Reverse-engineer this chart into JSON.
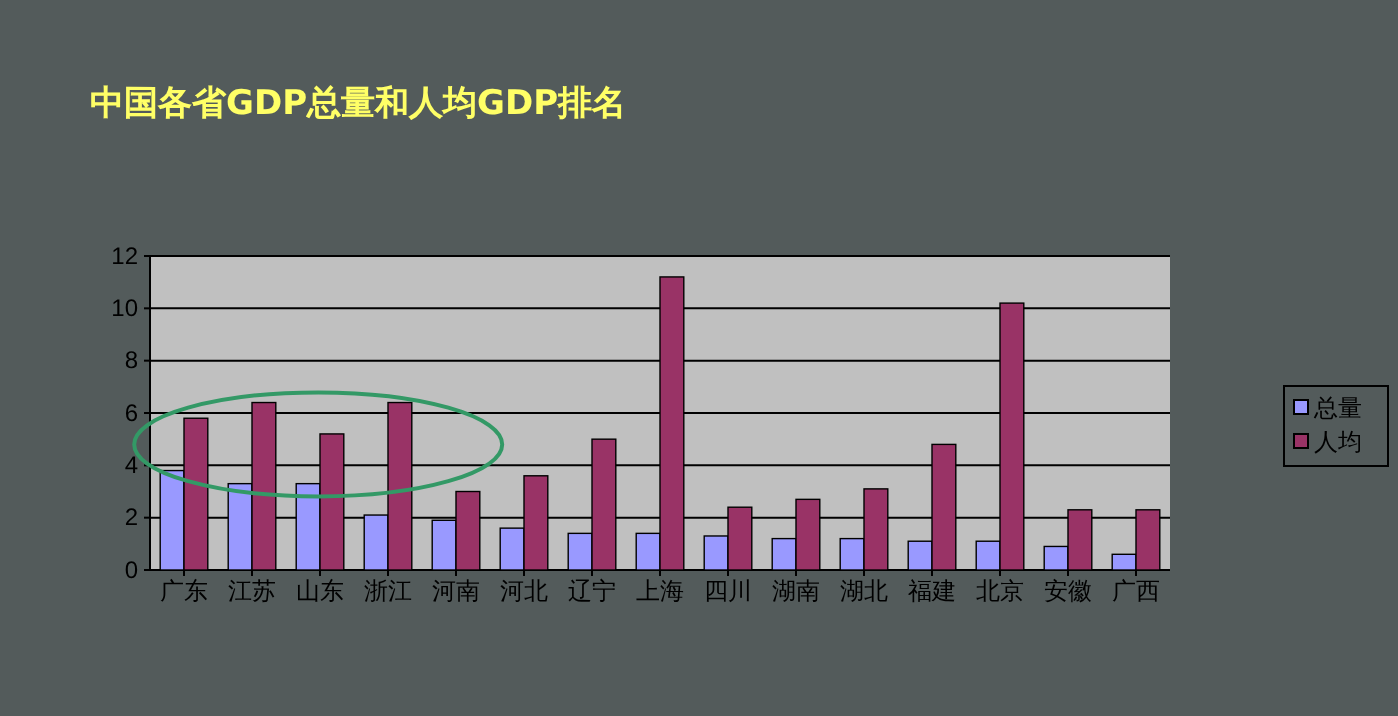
{
  "chart_data": {
    "type": "bar",
    "title": "中国各省GDP总量和人均GDP排名",
    "categories": [
      "广东",
      "江苏",
      "山东",
      "浙江",
      "河南",
      "河北",
      "辽宁",
      "上海",
      "四川",
      "湖南",
      "湖北",
      "福建",
      "北京",
      "安徽",
      "广西"
    ],
    "series": [
      {
        "name": "总量",
        "color": "#9999ff",
        "values": [
          3.8,
          3.3,
          3.3,
          2.1,
          1.9,
          1.6,
          1.4,
          1.4,
          1.3,
          1.2,
          1.2,
          1.1,
          1.1,
          0.9,
          0.6
        ]
      },
      {
        "name": "人均",
        "color": "#993366",
        "values": [
          5.8,
          6.4,
          5.2,
          6.4,
          3.0,
          3.6,
          5.0,
          11.2,
          2.4,
          2.7,
          3.1,
          4.8,
          10.2,
          2.3,
          2.3
        ]
      }
    ],
    "ylim": [
      0,
      12
    ],
    "yticks": [
      0,
      2,
      4,
      6,
      8,
      10,
      12
    ],
    "grid": "y",
    "legend": "right"
  }
}
